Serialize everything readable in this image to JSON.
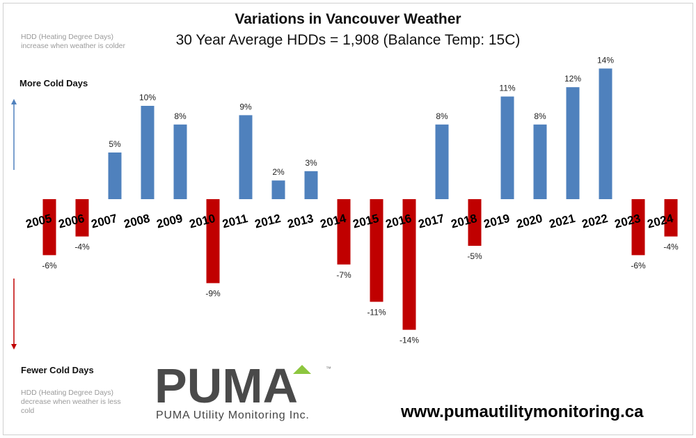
{
  "header": {
    "title": "Variations  in Vancouver Weather",
    "subtitle": "30 Year Average HDDs = 1,908  (Balance Temp: 15C)"
  },
  "notes": {
    "top": "HDD (Heating Degree Days) increase when weather is colder",
    "bottom": "HDD (Heating Degree Days) decrease when weather is less cold"
  },
  "labels": {
    "more": "More Cold Days",
    "fewer": "Fewer Cold Days"
  },
  "branding": {
    "logo_text": "PUMA",
    "trademark": "™",
    "company": "PUMA Utility Monitoring Inc.",
    "website": "www.pumautilitymonitoring.ca"
  },
  "colors": {
    "positive": "#4f81bd",
    "negative": "#c00000",
    "up_arrow": "#4f81bd",
    "down_arrow": "#c00000",
    "logo_dark": "#4a4a4a",
    "logo_accent": "#8dc63f"
  },
  "chart_data": {
    "type": "bar",
    "title": "Variations  in Vancouver Weather",
    "subtitle": "30 Year Average HDDs = 1,908  (Balance Temp: 15C)",
    "xlabel": "",
    "ylabel": "",
    "categories": [
      "2005",
      "2006",
      "2007",
      "2008",
      "2009",
      "2010",
      "2011",
      "2012",
      "2013",
      "2014",
      "2015",
      "2016",
      "2017",
      "2018",
      "2019",
      "2020",
      "2021",
      "2022",
      "2023",
      "2024"
    ],
    "values": [
      -6,
      -4,
      5,
      10,
      8,
      -9,
      9,
      2,
      3,
      -7,
      -11,
      -14,
      8,
      -5,
      11,
      8,
      12,
      14,
      -6,
      -4
    ],
    "value_labels": [
      "-6%",
      "-4%",
      "5%",
      "10%",
      "8%",
      "-9%",
      "9%",
      "2%",
      "3%",
      "-7%",
      "-11%",
      "-14%",
      "8%",
      "-5%",
      "11%",
      "8%",
      "12%",
      "14%",
      "-6%",
      "-4%"
    ],
    "ylim": [
      -15,
      15
    ],
    "unit": "%",
    "grid": false
  }
}
